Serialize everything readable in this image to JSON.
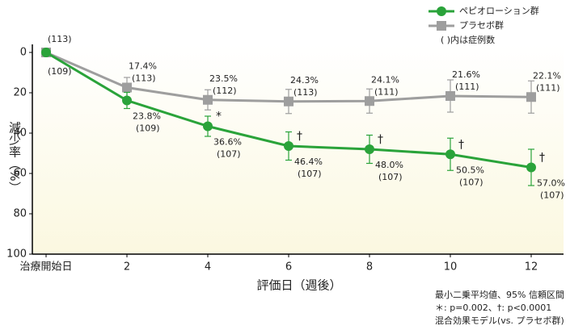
{
  "chart_data": {
    "type": "line",
    "x_label": "評価日（週後）",
    "y_label": "減少率（%）",
    "x": [
      0,
      2,
      4,
      6,
      8,
      10,
      12
    ],
    "xlim": [
      -0.34,
      12.8
    ],
    "xticks": [
      {
        "value": 0,
        "label": "治療開始日"
      },
      2,
      4,
      6,
      8,
      10,
      12
    ],
    "ylim": [
      0,
      100
    ],
    "y_inverted": true,
    "yticks": [
      0,
      20,
      40,
      60,
      80,
      100
    ],
    "series": [
      {
        "name": "ペピオローション群",
        "color": "#2aa33a",
        "marker": "circle",
        "values": [
          0,
          23.8,
          36.6,
          46.4,
          48.0,
          50.5,
          57.0
        ],
        "errors": [
          0,
          4,
          5,
          7,
          7,
          8,
          9
        ],
        "value_labels": [
          null,
          "23.8%",
          "36.6%",
          "46.4%",
          "48.0%",
          "50.5%",
          "57.0%"
        ],
        "n_labels": [
          "(109)",
          "(109)",
          "(107)",
          "(107)",
          "(107)",
          "(107)",
          "(107)"
        ],
        "significance": [
          null,
          null,
          "*",
          "†",
          "†",
          "†",
          "†"
        ]
      },
      {
        "name": "プラセボ群",
        "color": "#9e9e9e",
        "marker": "square",
        "values": [
          0,
          17.4,
          23.5,
          24.3,
          24.1,
          21.6,
          22.1
        ],
        "errors": [
          0,
          5,
          5,
          6,
          6,
          8,
          8
        ],
        "value_labels": [
          null,
          "17.4%",
          "23.5%",
          "24.3%",
          "24.1%",
          "21.6%",
          "22.1%"
        ],
        "n_labels": [
          "(113)",
          "(113)",
          "(112)",
          "(113)",
          "(111)",
          "(111)",
          "(111)"
        ]
      }
    ],
    "legend_note": "(  )内は症例数",
    "notes": [
      "最小二乗平均値、95% 信頼区間",
      "＊: p=0.002、†: p<0.0001",
      "混合効果モデル(vs. プラセボ群)"
    ]
  }
}
